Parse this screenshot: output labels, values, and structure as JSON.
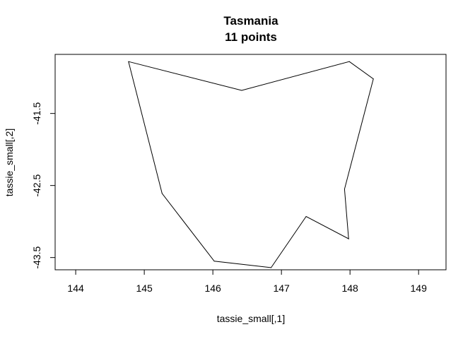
{
  "chart_data": {
    "type": "line",
    "title": "Tasmania",
    "subtitle": "11 points",
    "xlabel": "tassie_small[,1]",
    "ylabel": "tassie_small[,2]",
    "xlim": [
      143.7,
      149.4
    ],
    "ylim": [
      -43.67,
      -40.68
    ],
    "xticks": [
      144,
      145,
      146,
      147,
      148,
      149
    ],
    "yticks": [
      -41.5,
      -42.5,
      -43.5
    ],
    "grid": false,
    "closed": true,
    "points": [
      {
        "x": 144.77,
        "y": -40.78
      },
      {
        "x": 146.42,
        "y": -41.18
      },
      {
        "x": 147.99,
        "y": -40.78
      },
      {
        "x": 148.34,
        "y": -41.02
      },
      {
        "x": 147.92,
        "y": -42.55
      },
      {
        "x": 147.98,
        "y": -43.24
      },
      {
        "x": 147.36,
        "y": -42.93
      },
      {
        "x": 146.85,
        "y": -43.64
      },
      {
        "x": 146.02,
        "y": -43.55
      },
      {
        "x": 145.26,
        "y": -42.61
      },
      {
        "x": 144.77,
        "y": -40.78
      }
    ]
  }
}
